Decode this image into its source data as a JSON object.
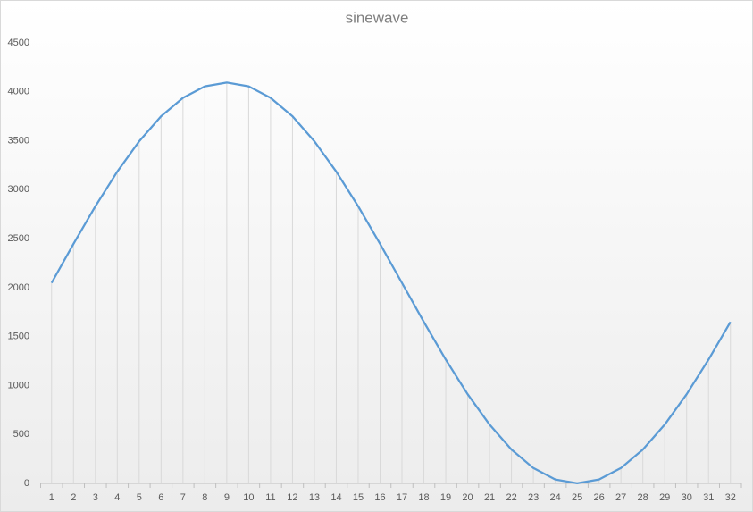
{
  "chart_data": {
    "type": "line",
    "title": "sinewave",
    "categories": [
      "1",
      "2",
      "3",
      "4",
      "5",
      "6",
      "7",
      "8",
      "9",
      "10",
      "11",
      "12",
      "13",
      "14",
      "15",
      "16",
      "17",
      "18",
      "19",
      "20",
      "21",
      "22",
      "23",
      "24",
      "25",
      "26",
      "27",
      "28",
      "29",
      "30",
      "31",
      "32"
    ],
    "series": [
      {
        "color": "#5b9bd5",
        "values": [
          2048,
          2447,
          2831,
          3185,
          3495,
          3750,
          3939,
          4056,
          4095,
          4056,
          3939,
          3750,
          3495,
          3185,
          2831,
          2447,
          2048,
          1649,
          1265,
          911,
          601,
          346,
          157,
          40,
          1,
          40,
          157,
          346,
          601,
          911,
          1265,
          1649
        ]
      }
    ],
    "ylim": [
      0,
      4500
    ],
    "yticks": [
      0,
      500,
      1000,
      1500,
      2000,
      2500,
      3000,
      3500,
      4000,
      4500
    ],
    "grid": false,
    "drop_lines": true
  }
}
